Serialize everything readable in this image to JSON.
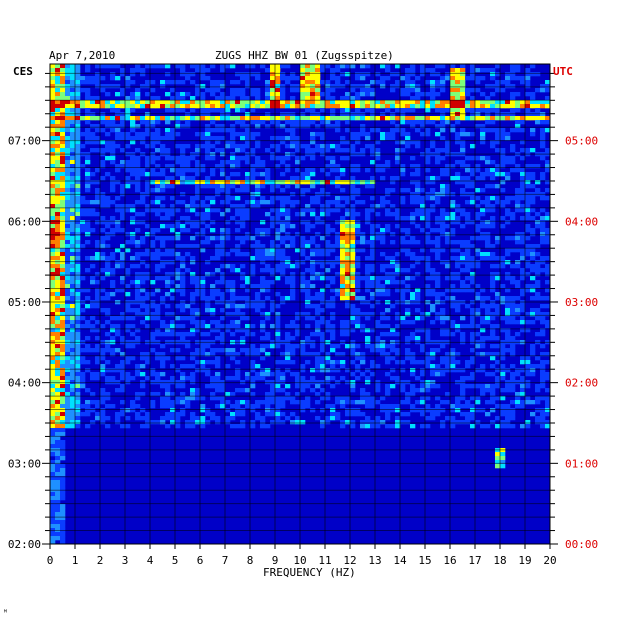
{
  "chart_data": {
    "type": "heatmap",
    "title_date": "Apr 7,2010",
    "title_station": "ZUGS HHZ BW 01 (Zugsspitze)",
    "left_timezone": "CES",
    "right_timezone": "UTC",
    "xlabel": "FREQUENCY (HZ)",
    "xlim": [
      0,
      20
    ],
    "x_ticks": [
      "0",
      "1",
      "2",
      "3",
      "4",
      "5",
      "6",
      "7",
      "8",
      "9",
      "10",
      "11",
      "12",
      "13",
      "14",
      "15",
      "16",
      "17",
      "18",
      "19",
      "20"
    ],
    "left_time_ticks": [
      {
        "hour_ces": 2,
        "label": "02:00"
      },
      {
        "hour_ces": 3,
        "label": "03:00"
      },
      {
        "hour_ces": 4,
        "label": "04:00"
      },
      {
        "hour_ces": 5,
        "label": "05:00"
      },
      {
        "hour_ces": 6,
        "label": "06:00"
      },
      {
        "hour_ces": 7,
        "label": "07:00"
      }
    ],
    "right_time_ticks": [
      {
        "hour_ces": 2,
        "label": "00:00"
      },
      {
        "hour_ces": 3,
        "label": "01:00"
      },
      {
        "hour_ces": 4,
        "label": "02:00"
      },
      {
        "hour_ces": 5,
        "label": "03:00"
      },
      {
        "hour_ces": 6,
        "label": "04:00"
      },
      {
        "hour_ces": 7,
        "label": "05:00"
      }
    ],
    "time_range_ces_hours": [
      2.0,
      7.95
    ],
    "grid": true,
    "colors": {
      "left_labels": "#000000",
      "right_labels": "#dd0000",
      "colormap": [
        "#00007a",
        "#0000c8",
        "#0a3cff",
        "#1e90ff",
        "#00e0ff",
        "#7dff7a",
        "#ffff00",
        "#ff7f00",
        "#d00000"
      ]
    },
    "features": {
      "quiet_period_ces_hours": [
        2.0,
        3.45
      ],
      "active_period_ces_hours": [
        3.45,
        7.95
      ],
      "low_frequency_band_hz": [
        0,
        0.6
      ],
      "spectral_lines_hz": [
        {
          "freq": 9.0,
          "from_h": 7.4,
          "to_h": 7.95
        },
        {
          "freq": 10.2,
          "from_h": 7.5,
          "to_h": 7.95
        },
        {
          "freq": 10.6,
          "from_h": 7.5,
          "to_h": 7.95
        },
        {
          "freq": 11.9,
          "from_h": 5.0,
          "to_h": 6.0
        },
        {
          "freq": 16.3,
          "from_h": 7.3,
          "to_h": 7.9
        },
        {
          "freq": 18.0,
          "from_h": 2.95,
          "to_h": 3.2
        }
      ],
      "horizontal_bursts": [
        {
          "time_h": 6.5,
          "from_hz": 4.0,
          "to_hz": 13.0
        },
        {
          "time_h": 7.3,
          "from_hz": 0.0,
          "to_hz": 20.0
        },
        {
          "time_h": 7.45,
          "from_hz": 0.0,
          "to_hz": 20.0
        }
      ]
    }
  },
  "footer_mark": "ᴹ"
}
